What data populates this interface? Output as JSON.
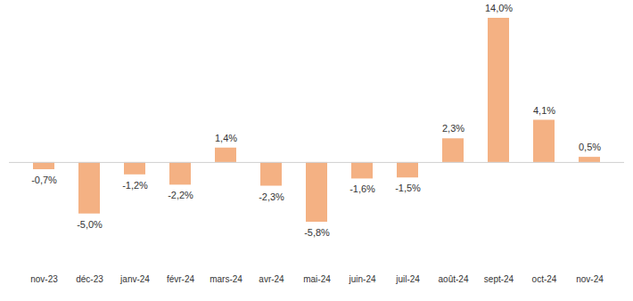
{
  "chart_data": {
    "type": "bar",
    "categories": [
      "nov-23",
      "déc-23",
      "janv-24",
      "févr-24",
      "mars-24",
      "avr-24",
      "mai-24",
      "juin-24",
      "juil-24",
      "août-24",
      "sept-24",
      "oct-24",
      "nov-24"
    ],
    "values": [
      -0.7,
      -5.0,
      -1.2,
      -2.2,
      1.4,
      -2.3,
      -5.8,
      -1.6,
      -1.5,
      2.3,
      14.0,
      4.1,
      0.5
    ],
    "value_labels": [
      "-0,7%",
      "-5,0%",
      "-1,2%",
      "-2,2%",
      "1,4%",
      "-2,3%",
      "-5,8%",
      "-1,6%",
      "-1,5%",
      "2,3%",
      "14,0%",
      "4,1%",
      "0,5%"
    ],
    "color": "#f4b183",
    "data_labels": true,
    "tick_labels": "x",
    "grid": false
  }
}
